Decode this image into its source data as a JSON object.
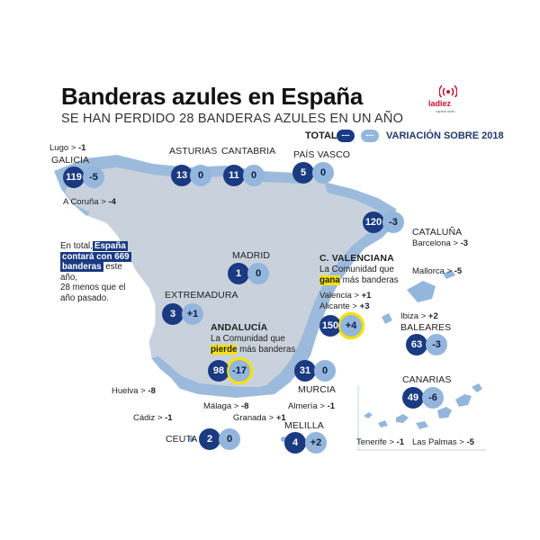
{
  "header": {
    "title": "Banderas azules en España",
    "subtitle": "SE HAN PERDIDO 28 BANDERAS AZULES EN UN AÑO",
    "logo_text": "ladiez",
    "logo_sub": "capital radio"
  },
  "legend": {
    "total_label": "TOTAL",
    "total_sample": "---",
    "var_sample": "---",
    "var_label": "VARIACIÓN SOBRE 2018"
  },
  "note": {
    "intro": "En total,",
    "highlight1": "España",
    "highlight2": "contará con 669",
    "highlight3": "banderas",
    "rest1": "este año,",
    "rest2": "28 menos que el",
    "rest3": "año pasado."
  },
  "regions": {
    "galicia": {
      "name": "GALICIA",
      "total": "119",
      "var": "-5"
    },
    "asturias": {
      "name": "ASTURIAS",
      "total": "13",
      "var": "0"
    },
    "cantabria": {
      "name": "CANTABRIA",
      "total": "11",
      "var": "0"
    },
    "paisvasco": {
      "name": "PAÍS VASCO",
      "total": "5",
      "var": "0"
    },
    "cataluna": {
      "name": "CATALUÑA",
      "total": "120",
      "var": "-3"
    },
    "madrid": {
      "name": "MADRID",
      "total": "1",
      "var": "0"
    },
    "valenciana": {
      "name": "C. VALENCIANA",
      "total": "150",
      "var": "+4",
      "desc1": "La Comunidad que",
      "desc_hl": "gana",
      "desc2": "más banderas"
    },
    "extremadura": {
      "name": "EXTREMADURA",
      "total": "3",
      "var": "+1"
    },
    "andalucia": {
      "name": "ANDALUCÍA",
      "total": "98",
      "var": "-17",
      "desc1": "La Comunidad que",
      "desc_hl": "pierde",
      "desc2": "más banderas"
    },
    "murcia": {
      "name": "MURCIA",
      "total": "31",
      "var": "0"
    },
    "baleares": {
      "name": "BALEARES",
      "total": "63",
      "var": "-3"
    },
    "canarias": {
      "name": "CANARIAS",
      "total": "49",
      "var": "-6"
    },
    "ceuta": {
      "name": "CEUTA",
      "total": "2",
      "var": "0"
    },
    "melilla": {
      "name": "MELILLA",
      "total": "4",
      "var": "+2"
    }
  },
  "provinces": {
    "lugo": {
      "name": "Lugo >",
      "var": "-1"
    },
    "coruna": {
      "name": "A Coruña >",
      "var": "-4"
    },
    "barcelona": {
      "name": "Barcelona >",
      "var": "-3"
    },
    "mallorca": {
      "name": "Mallorca >",
      "var": "-5"
    },
    "valencia": {
      "name": "Valencia >",
      "var": "+1"
    },
    "alicante": {
      "name": "Alicante >",
      "var": "+3"
    },
    "ibiza": {
      "name": "Ibiza >",
      "var": "+2"
    },
    "huelva": {
      "name": "Huelva >",
      "var": "-8"
    },
    "cadiz": {
      "name": "Cádiz >",
      "var": "-1"
    },
    "malaga": {
      "name": "Málaga >",
      "var": "-8"
    },
    "granada": {
      "name": "Granada >",
      "var": "+1"
    },
    "almeria": {
      "name": "Almería >",
      "var": "-1"
    },
    "tenerife": {
      "name": "Tenerife >",
      "var": "-1"
    },
    "laspalmas": {
      "name": "Las Palmas >",
      "var": "-5"
    }
  },
  "colors": {
    "land": "#c9d2dc",
    "coast": "#94b6dc",
    "total": "#1a3a82",
    "var": "#94b6dc",
    "highlight": "#f5e10a"
  }
}
